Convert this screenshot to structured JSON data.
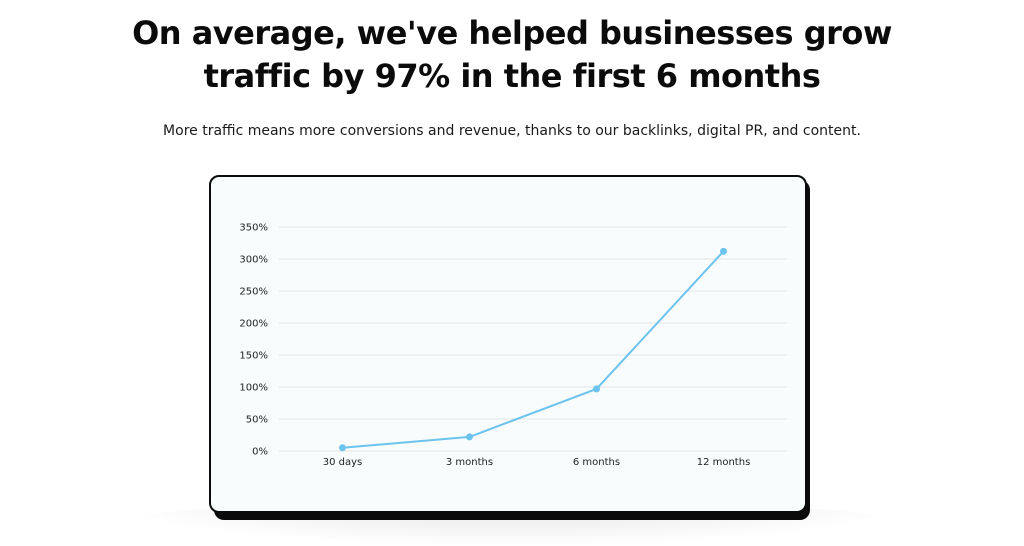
{
  "heading": {
    "line1": "On average, we've helped businesses grow",
    "line2": "traffic by 97% in the first 6 months"
  },
  "subheading": "More traffic means more conversions and revenue, thanks to our backlinks, digital PR, and content.",
  "colors": {
    "line": "#6cc3ee",
    "grid": "#e2e6e8",
    "card_border": "#0b0b0b",
    "card_background": "#f9fcfd"
  },
  "chart_data": {
    "type": "line",
    "categories": [
      "30 days",
      "3 months",
      "6 months",
      "12 months"
    ],
    "series": [
      {
        "values": [
          5,
          22,
          97,
          312
        ]
      }
    ],
    "y_ticks": [
      0,
      50,
      100,
      150,
      200,
      250,
      300,
      350
    ],
    "y_tick_suffix": "%",
    "ylim": [
      0,
      350
    ],
    "grid": true,
    "title": "",
    "xlabel": "",
    "ylabel": ""
  }
}
